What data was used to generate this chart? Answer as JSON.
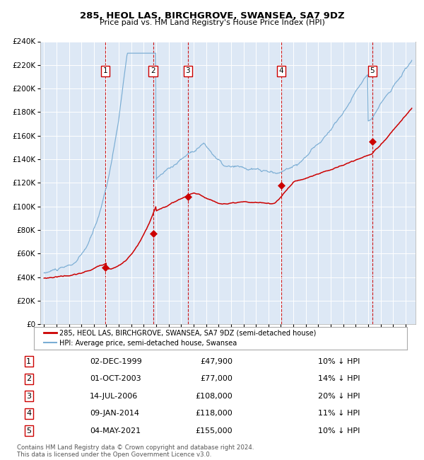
{
  "title": "285, HEOL LAS, BIRCHGROVE, SWANSEA, SA7 9DZ",
  "subtitle": "Price paid vs. HM Land Registry's House Price Index (HPI)",
  "plot_bg_color": "#dde8f5",
  "grid_color": "#ffffff",
  "red_line_color": "#cc0000",
  "blue_line_color": "#7aadd4",
  "sale_marker_color": "#cc0000",
  "vline_color": "#cc0000",
  "box_color": "#cc0000",
  "sale_dates_num": [
    1999.92,
    2003.75,
    2006.54,
    2014.03,
    2021.34
  ],
  "sale_prices": [
    47900,
    77000,
    108000,
    118000,
    155000
  ],
  "sale_labels": [
    "1",
    "2",
    "3",
    "4",
    "5"
  ],
  "sale_dates_str": [
    "02-DEC-1999",
    "01-OCT-2003",
    "14-JUL-2006",
    "09-JAN-2014",
    "04-MAY-2021"
  ],
  "sale_hpi_diff": [
    "10% ↓ HPI",
    "14% ↓ HPI",
    "20% ↓ HPI",
    "11% ↓ HPI",
    "10% ↓ HPI"
  ],
  "sale_prices_str": [
    "£47,900",
    "£77,000",
    "£108,000",
    "£118,000",
    "£155,000"
  ],
  "ylim": [
    0,
    240000
  ],
  "yticks": [
    0,
    20000,
    40000,
    60000,
    80000,
    100000,
    120000,
    140000,
    160000,
    180000,
    200000,
    220000,
    240000
  ],
  "xlim_start": 1994.7,
  "xlim_end": 2024.8,
  "legend_label_red": "285, HEOL LAS, BIRCHGROVE, SWANSEA, SA7 9DZ (semi-detached house)",
  "legend_label_blue": "HPI: Average price, semi-detached house, Swansea",
  "footer": "Contains HM Land Registry data © Crown copyright and database right 2024.\nThis data is licensed under the Open Government Licence v3.0."
}
